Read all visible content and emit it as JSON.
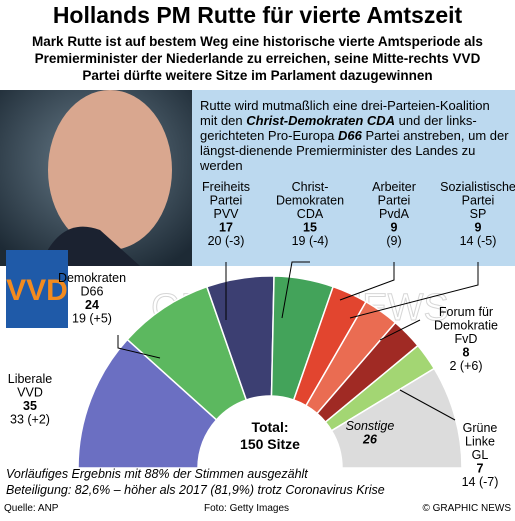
{
  "title": "Hollands PM Rutte für vierte Amtszeit",
  "subtitle": "Mark Rutte ist auf bestem Weg eine historische vierte Amtsperiode als Premierminister der Niederlande zu erreichen, seine Mitte-rechts VVD Partei dürfte weitere Sitze im Parlament dazugewinnen",
  "box_text": [
    {
      "text": "Rutte wird mutmaßlich eine drei-Parteien-Koalition mit den ",
      "bold": false
    },
    {
      "text": "Christ-Demokraten CDA",
      "bold": true
    },
    {
      "text": " und der links-gerichteten Pro-Europa ",
      "bold": false
    },
    {
      "text": "D66",
      "bold": true
    },
    {
      "text": " Partei anstreben, um der längst-dienende Premierminister des Landes zu werden",
      "bold": false
    }
  ],
  "logo": "VVD",
  "watermark": "GRAPHIC NEWS",
  "chart_data": {
    "type": "parliament",
    "categories": [
      [
        "Liberale",
        "VVD"
      ],
      [
        "Demokraten",
        "D66"
      ],
      [
        "Freiheits",
        "Partei",
        "PVV"
      ],
      [
        "Christ-",
        "Demokraten",
        "CDA"
      ],
      [
        "Arbeiter",
        "Partei",
        "PvdA"
      ],
      [
        "Sozialistische",
        "Partei",
        "SP"
      ],
      [
        "Forum für",
        "Demokratie",
        "FvD"
      ],
      [
        "Grüne",
        "Linke",
        "GL"
      ],
      [
        "Sonstige"
      ]
    ],
    "values": [
      35,
      24,
      17,
      15,
      9,
      9,
      8,
      7,
      26
    ],
    "previous": [
      "33 (+2)",
      "19 (+5)",
      "20 (-3)",
      "19 (-4)",
      "(9)",
      "14 (-5)",
      "2 (+6)",
      "14 (-7)",
      null
    ],
    "colors": [
      "#6b6fc2",
      "#5cb85f",
      "#3c3f72",
      "#43a35a",
      "#e2452f",
      "#ea6c52",
      "#a02a24",
      "#a3d673",
      "#dcdcdc"
    ],
    "total_label": "Total:",
    "total": "150 Sitze"
  },
  "notes": [
    "Vorläufiges Ergebnis mit 88% der Stimmen ausgezählt",
    "Beteiligung: 82,6% – höher als 2017 (81,9%) trotz Coronavirus Krise"
  ],
  "footer": {
    "source": "Quelle: ANP",
    "photo": "Foto: Getty Images",
    "copyright": "© GRAPHIC NEWS"
  }
}
